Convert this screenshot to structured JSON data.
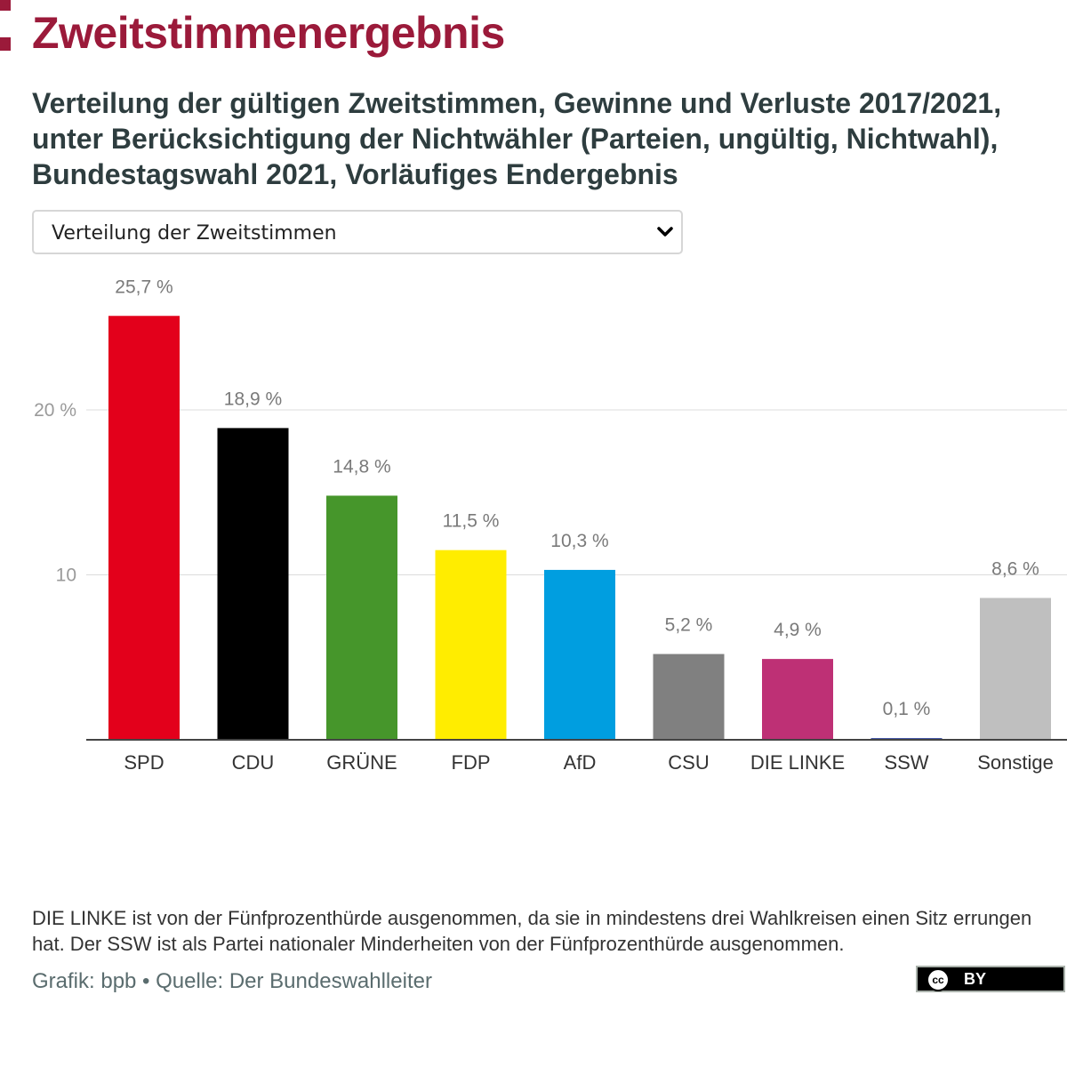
{
  "header": {
    "title": "Zweitstimmenergebnis",
    "subtitle": "Verteilung der gültigen Zweitstimmen, Gewinne und Verluste 2017/2021, unter Berücksichtigung der Nichtwähler (Parteien, ungültig, Nichtwahl), Bundestagswahl 2021, Vorläufiges Endergebnis"
  },
  "select": {
    "value": "Verteilung der Zweitstimmen",
    "icon": "chevron-down-icon"
  },
  "chart_data": {
    "type": "bar",
    "title": "",
    "xlabel": "",
    "ylabel": "",
    "categories": [
      "SPD",
      "CDU",
      "GRÜNE",
      "FDP",
      "AfD",
      "CSU",
      "DIE LINKE",
      "SSW",
      "Sonstige"
    ],
    "values": [
      25.7,
      18.9,
      14.8,
      11.5,
      10.3,
      5.2,
      4.9,
      0.1,
      8.6
    ],
    "value_labels": [
      "25,7 %",
      "18,9 %",
      "14,8 %",
      "11,5 %",
      "10,3 %",
      "5,2 %",
      "4,9 %",
      "0,1 %",
      "8,6 %"
    ],
    "colors": [
      "#e3001b",
      "#000000",
      "#46962b",
      "#ffed00",
      "#009ee0",
      "#808080",
      "#be3075",
      "#2a3e9b",
      "#bfbfbf"
    ],
    "yticks": [
      10,
      20
    ],
    "ytick_labels": [
      "10",
      "20 %"
    ],
    "ylim": [
      0,
      27
    ],
    "grid": true
  },
  "footer": {
    "note": "DIE LINKE ist von der Fünfprozenthürde ausgenommen, da sie in mindestens drei Wahlkreisen einen Sitz errungen hat. Der SSW ist als Partei nationaler Minderheiten von der Fünfprozenthürde ausgenommen.",
    "source": "Grafik: bpb • Quelle: Der Bundeswahlleiter",
    "license": {
      "icon_text": "cc",
      "label": "BY"
    }
  }
}
